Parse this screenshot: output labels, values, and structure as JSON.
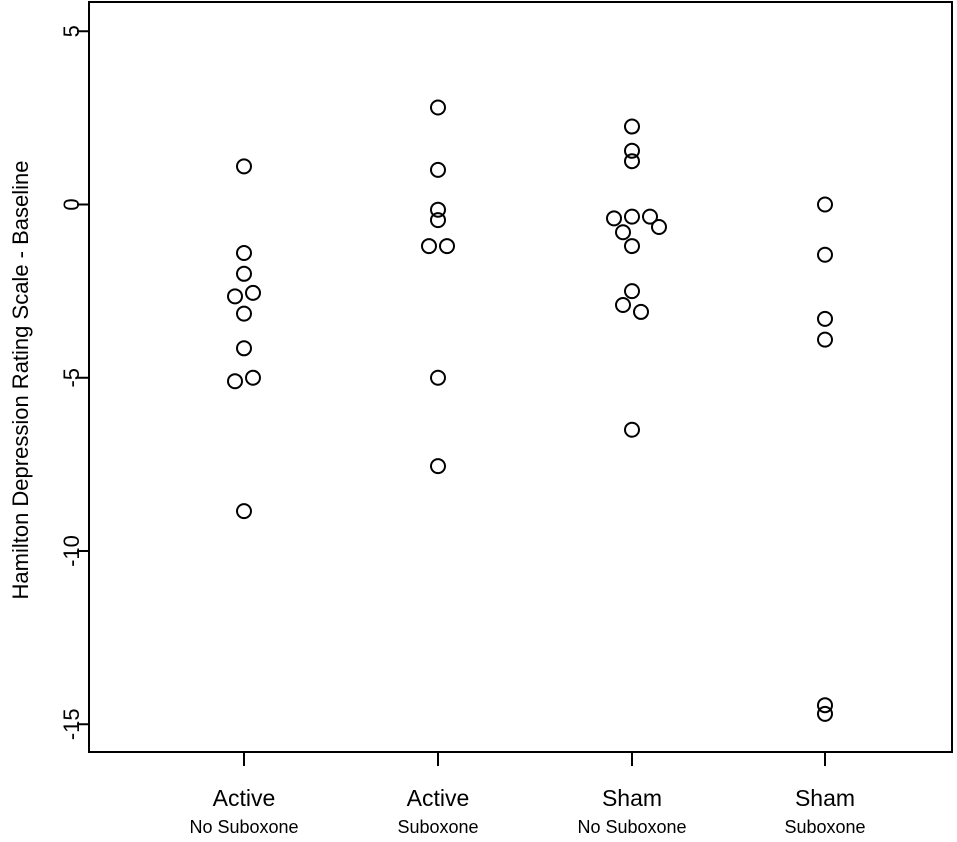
{
  "chart_data": {
    "type": "scatter",
    "title": "",
    "xlabel": "",
    "ylabel": "Hamilton Depression Rating Scale - Baseline",
    "ylim": [
      -16,
      5.8
    ],
    "y_ticks": [
      5,
      0,
      -5,
      -10,
      -15
    ],
    "y_tick_labels": [
      "5",
      "0",
      "-5",
      "-10",
      "-15"
    ],
    "grid": false,
    "legend": "none",
    "marker": "open-circle",
    "marker_color": "#000000",
    "categories": [
      {
        "main": "Active",
        "sub": "No Suboxone"
      },
      {
        "main": "Active",
        "sub": "Suboxone"
      },
      {
        "main": "Sham",
        "sub": "No Suboxone"
      },
      {
        "main": "Sham",
        "sub": "Suboxone"
      }
    ],
    "points": [
      {
        "group": 0,
        "offset": 0,
        "y": 1.1
      },
      {
        "group": 0,
        "offset": 0,
        "y": -1.4
      },
      {
        "group": 0,
        "offset": 0,
        "y": -2.0
      },
      {
        "group": 0,
        "offset": -0.5,
        "y": -2.65
      },
      {
        "group": 0,
        "offset": 0.5,
        "y": -2.55
      },
      {
        "group": 0,
        "offset": 0,
        "y": -3.15
      },
      {
        "group": 0,
        "offset": 0,
        "y": -4.15
      },
      {
        "group": 0,
        "offset": -0.5,
        "y": -5.1
      },
      {
        "group": 0,
        "offset": 0.5,
        "y": -5.0
      },
      {
        "group": 0,
        "offset": 0,
        "y": -8.85
      },
      {
        "group": 1,
        "offset": 0,
        "y": 2.8
      },
      {
        "group": 1,
        "offset": 0,
        "y": 1.0
      },
      {
        "group": 1,
        "offset": 0,
        "y": -0.15
      },
      {
        "group": 1,
        "offset": 0,
        "y": -0.45
      },
      {
        "group": 1,
        "offset": -0.5,
        "y": -1.2
      },
      {
        "group": 1,
        "offset": 0.5,
        "y": -1.2
      },
      {
        "group": 1,
        "offset": 0,
        "y": -5.0
      },
      {
        "group": 1,
        "offset": 0,
        "y": -7.55
      },
      {
        "group": 2,
        "offset": 0,
        "y": 2.25
      },
      {
        "group": 2,
        "offset": 0,
        "y": 1.55
      },
      {
        "group": 2,
        "offset": 0,
        "y": 1.25
      },
      {
        "group": 2,
        "offset": -1.0,
        "y": -0.4
      },
      {
        "group": 2,
        "offset": 0,
        "y": -0.35
      },
      {
        "group": 2,
        "offset": 1.0,
        "y": -0.35
      },
      {
        "group": 2,
        "offset": -0.5,
        "y": -0.8
      },
      {
        "group": 2,
        "offset": 1.5,
        "y": -0.65
      },
      {
        "group": 2,
        "offset": 0,
        "y": -1.2
      },
      {
        "group": 2,
        "offset": 0,
        "y": -2.5
      },
      {
        "group": 2,
        "offset": -0.5,
        "y": -2.9
      },
      {
        "group": 2,
        "offset": 0.5,
        "y": -3.1
      },
      {
        "group": 2,
        "offset": 0,
        "y": -6.5
      },
      {
        "group": 3,
        "offset": 0,
        "y": 0.0
      },
      {
        "group": 3,
        "offset": 0,
        "y": -1.45
      },
      {
        "group": 3,
        "offset": 0,
        "y": -3.3
      },
      {
        "group": 3,
        "offset": 0,
        "y": -3.9
      },
      {
        "group": 3,
        "offset": 0,
        "y": -14.45
      },
      {
        "group": 3,
        "offset": 0,
        "y": -14.7
      }
    ]
  }
}
